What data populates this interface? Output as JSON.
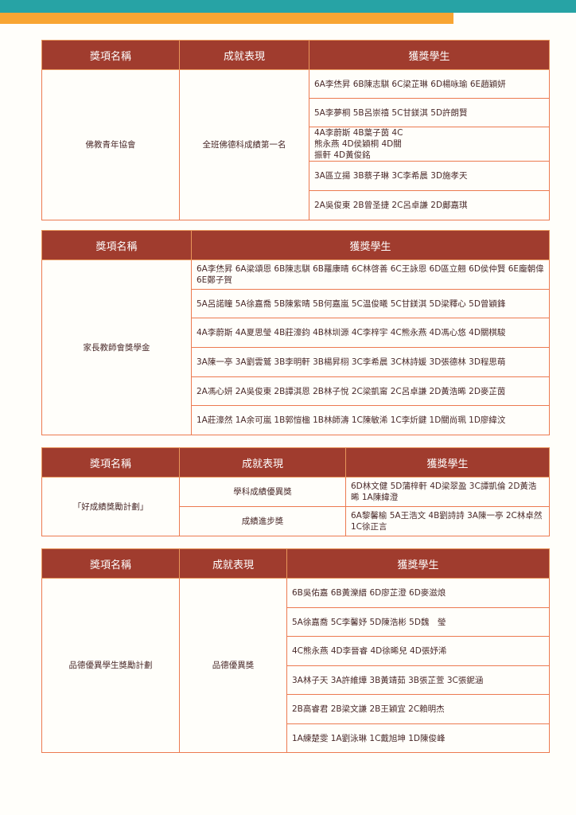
{
  "decor": {
    "top_bar_color": "#27a3a5",
    "accent_bar_color": "#f8a533",
    "header_color": "#a03c2e",
    "border_color": "#ec7a50"
  },
  "table1": {
    "headers": [
      "獎項名稱",
      "成就表現",
      "獲獎學生"
    ],
    "award": "佛教青年協會",
    "achievement": "全班佛德科成績第一名",
    "students": [
      "6A李烋昇 6B陳志騏 6C梁芷琳 6D楊咏瑜 6E趙穎妍",
      "5A李夢桐 5B呂崇禧 5C甘鎂淇 5D許朗賢",
      "4A李蔚斯 4B葉子茵 4C熊永燕 4D侯穎桐 4D關振軒 4D黃俊銘",
      "3A區立揚 3B蔡子琳 3C李希晨 3D施孝天",
      "2A吳俊東 2B曾圣捷 2C呂卓謙 2D鄺嘉琪"
    ]
  },
  "table2": {
    "headers": [
      "獎項名稱",
      "獲獎學生"
    ],
    "award": "家長教師會獎學金",
    "students": [
      "6A李烋昇 6A梁頌恩 6B陳志騏 6B羅康晴 6C林啓善 6C王詠恩 6D區立翹 6D侯仲賢 6E龐朝偉 6E鄭子賀",
      "5A呂諾瞳 5A徐嘉喬 5B陳紫晴 5B何嘉嵐 5C温俊曦 5C甘鎂淇 5D梁釋心 5D曾穎鋒",
      "4A李蔚斯 4A夏思瑩 4B莊濠鈞 4B林圳源 4C李梓宇 4C熊永燕 4D馮心悠 4D關棋駿",
      "3A陳一亭 3A劉雲鷲 3B李明軒 3B楊昇栩 3C李希晨 3C林詩媛 3D張德林 3D程思萌",
      "2A馮心妍 2A吳俊東 2B譚淇恩 2B林子悅 2C梁凱甯 2C呂卓謙 2D黃浩晞 2D麥芷茵",
      "1A莊濠然 1A余可嵐 1B郭愷楹 1B林師濤 1C陳敏浠 1C李炘鍵 1D關尚珮 1D廖緯汶"
    ]
  },
  "table3": {
    "headers": [
      "獎項名稱",
      "成就表現",
      "獲獎學生"
    ],
    "award": "「好成績獎勵計劃」",
    "rows": [
      {
        "achievement": "學科成績優異獎",
        "students": "6D林文健 5D蒲梓軒 4D梁翠盈 3C譚凱倫 2D黃浩晞 1A陳緯澄"
      },
      {
        "achievement": "成績進步獎",
        "students": "6A黎馨榆 5A王浩文 4B劉詩詩 3A陳一亭 2C林卓然 1C徐正言"
      }
    ]
  },
  "table4": {
    "headers": [
      "獎項名稱",
      "成就表現",
      "獲獎學生"
    ],
    "award": "品德優異學生獎勵計劃",
    "achievement": "品德優異獎",
    "students": [
      "6B吳佑嘉 6B黃濼縉 6D廖芷澄 6D麥滋烺",
      "5A徐嘉喬 5C李馨妤 5D陳浩彬 5D魏　瑩",
      "4C熊永燕 4D李晉睿 4D徐晞兒 4D張妤浠",
      "3A林子天 3A許維燁 3B黃靖茹 3B張芷萱 3C張鈮涵",
      "2B高睿君 2B梁文謙 2B王穎宜 2C賴明杰",
      "1A練楚雯 1A劉泳琳 1C戴旭坤 1D陳俊峰"
    ]
  }
}
